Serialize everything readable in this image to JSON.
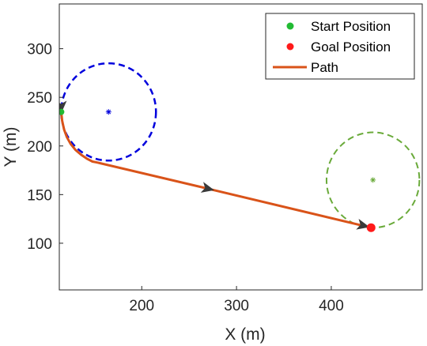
{
  "chart_data": {
    "type": "line",
    "xlabel": "X (m)",
    "ylabel": "Y (m)",
    "xlim": [
      113,
      496
    ],
    "ylim": [
      52,
      346
    ],
    "xticks": [
      200,
      300,
      400
    ],
    "yticks": [
      100,
      150,
      200,
      250,
      300
    ],
    "legend": {
      "position": "top-right",
      "entries": [
        "Start Position",
        "Goal Position",
        "Path"
      ]
    },
    "start": {
      "x": 115,
      "y": 235,
      "color": "#22bb33"
    },
    "goal": {
      "x": 442,
      "y": 116,
      "color": "#ff1a1a"
    },
    "start_circle": {
      "center": [
        165,
        235
      ],
      "radius": 50,
      "color": "#0000dd",
      "style": "dashed"
    },
    "goal_circle": {
      "center": [
        444,
        165
      ],
      "radius": 49,
      "color": "#6aaa3a",
      "style": "dashed"
    },
    "path": {
      "name": "Path",
      "color": "#d95319",
      "x": [
        115,
        116,
        118,
        121,
        125,
        130,
        136,
        142,
        148,
        153,
        270,
        442
      ],
      "y": [
        235,
        226,
        217,
        209,
        202,
        196,
        191,
        187,
        184,
        183,
        156,
        116
      ]
    },
    "direction_arrows": [
      {
        "x": 115,
        "y": 240,
        "heading": "down"
      },
      {
        "x": 270,
        "y": 156,
        "heading": "along-path"
      },
      {
        "x": 434,
        "y": 118,
        "heading": "along-path"
      }
    ]
  }
}
